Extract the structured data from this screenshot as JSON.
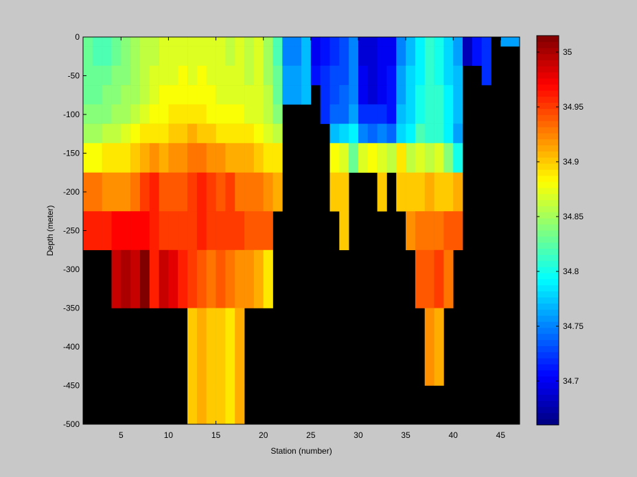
{
  "colors": {
    "figure_background": "#c8c8c8",
    "axes_background": "#000000",
    "no_data": "#000000"
  },
  "chart_data": {
    "type": "heatmap",
    "title": "",
    "xlabel": "Station (number)",
    "ylabel": "Depth (meter)",
    "colormap": "jet",
    "xlim": [
      1,
      47
    ],
    "ylim": [
      -500,
      0
    ],
    "xticks": [
      5,
      10,
      15,
      20,
      25,
      30,
      35,
      40,
      45
    ],
    "yticks": [
      0,
      -50,
      -100,
      -150,
      -200,
      -250,
      -300,
      -350,
      -400,
      -450,
      -500
    ],
    "colorbar": {
      "location": "right",
      "clim": [
        34.66,
        35.015
      ],
      "ticks": [
        34.7,
        34.75,
        34.8,
        34.85,
        34.9,
        34.95,
        35
      ]
    },
    "depth_layers": [
      -5,
      -25,
      -50,
      -75,
      -100,
      -125,
      -150,
      -200,
      -250,
      -300,
      -400,
      -500
    ],
    "stations": [
      {
        "station": 1,
        "values": [
          34.83,
          34.83,
          34.83,
          34.83,
          34.84,
          34.85,
          34.88,
          34.93,
          34.96,
          null,
          null,
          null
        ]
      },
      {
        "station": 2,
        "values": [
          34.82,
          34.82,
          34.83,
          34.83,
          34.84,
          34.85,
          34.88,
          34.93,
          34.96,
          null,
          null,
          null
        ]
      },
      {
        "station": 3,
        "values": [
          34.82,
          34.82,
          34.83,
          34.84,
          34.84,
          34.86,
          34.89,
          34.92,
          34.96,
          null,
          null,
          null
        ]
      },
      {
        "station": 4,
        "values": [
          34.83,
          34.83,
          34.84,
          34.84,
          34.85,
          34.86,
          34.89,
          34.92,
          34.97,
          34.99,
          null,
          null
        ]
      },
      {
        "station": 5,
        "values": [
          34.84,
          34.84,
          34.84,
          34.85,
          34.85,
          34.87,
          34.89,
          34.92,
          34.97,
          35.0,
          null,
          null
        ]
      },
      {
        "station": 6,
        "values": [
          34.85,
          34.85,
          34.85,
          34.85,
          34.86,
          34.88,
          34.9,
          34.93,
          34.97,
          34.99,
          null,
          null
        ]
      },
      {
        "station": 7,
        "values": [
          34.86,
          34.86,
          34.86,
          34.86,
          34.87,
          34.89,
          34.91,
          34.95,
          34.97,
          35.02,
          null,
          null
        ]
      },
      {
        "station": 8,
        "values": [
          34.86,
          34.86,
          34.87,
          34.87,
          34.88,
          34.89,
          34.92,
          34.96,
          34.96,
          34.96,
          null,
          null
        ]
      },
      {
        "station": 9,
        "values": [
          34.87,
          34.87,
          34.87,
          34.88,
          34.88,
          34.89,
          34.91,
          34.94,
          34.95,
          34.99,
          null,
          null
        ]
      },
      {
        "station": 10,
        "values": [
          34.87,
          34.87,
          34.87,
          34.88,
          34.89,
          34.9,
          34.92,
          34.94,
          34.95,
          34.98,
          null,
          null
        ]
      },
      {
        "station": 11,
        "values": [
          34.87,
          34.87,
          34.88,
          34.88,
          34.89,
          34.9,
          34.92,
          34.94,
          34.95,
          34.96,
          null,
          null
        ]
      },
      {
        "station": 12,
        "values": [
          34.87,
          34.87,
          34.87,
          34.88,
          34.89,
          34.91,
          34.93,
          34.95,
          34.95,
          34.95,
          34.9,
          34.9
        ]
      },
      {
        "station": 13,
        "values": [
          34.87,
          34.87,
          34.88,
          34.88,
          34.89,
          34.9,
          34.93,
          34.96,
          34.96,
          34.94,
          34.91,
          34.91
        ]
      },
      {
        "station": 14,
        "values": [
          34.87,
          34.87,
          34.87,
          34.88,
          34.88,
          34.9,
          34.92,
          34.95,
          34.95,
          34.93,
          34.9,
          34.9
        ]
      },
      {
        "station": 15,
        "values": [
          34.87,
          34.87,
          34.87,
          34.87,
          34.88,
          34.89,
          34.92,
          34.94,
          34.95,
          34.94,
          34.9,
          34.9
        ]
      },
      {
        "station": 16,
        "values": [
          34.86,
          34.86,
          34.87,
          34.87,
          34.88,
          34.89,
          34.91,
          34.95,
          34.95,
          34.93,
          34.89,
          34.89
        ]
      },
      {
        "station": 17,
        "values": [
          34.87,
          34.87,
          34.87,
          34.87,
          34.88,
          34.89,
          34.91,
          34.93,
          34.95,
          34.92,
          34.91,
          34.91
        ]
      },
      {
        "station": 18,
        "values": [
          34.86,
          34.86,
          34.86,
          34.87,
          34.87,
          34.89,
          34.91,
          34.93,
          34.94,
          34.92,
          null,
          null
        ]
      },
      {
        "station": 19,
        "values": [
          34.87,
          34.87,
          34.87,
          34.87,
          34.87,
          34.88,
          34.9,
          34.93,
          34.94,
          34.91,
          null,
          null
        ]
      },
      {
        "station": 20,
        "values": [
          34.85,
          34.85,
          34.85,
          34.86,
          34.86,
          34.87,
          34.89,
          34.92,
          34.94,
          34.89,
          null,
          null
        ]
      },
      {
        "station": 21,
        "values": [
          34.82,
          34.82,
          34.83,
          34.83,
          34.84,
          34.86,
          34.89,
          34.91,
          null,
          null,
          null,
          null
        ]
      },
      {
        "station": 22,
        "values": [
          34.75,
          34.75,
          34.76,
          34.76,
          null,
          null,
          null,
          null,
          null,
          null,
          null,
          null
        ]
      },
      {
        "station": 23,
        "values": [
          34.75,
          34.75,
          34.76,
          34.76,
          null,
          null,
          null,
          null,
          null,
          null,
          null,
          null
        ]
      },
      {
        "station": 24,
        "values": [
          34.77,
          34.77,
          34.77,
          34.77,
          null,
          null,
          null,
          null,
          null,
          null,
          null,
          null
        ]
      },
      {
        "station": 25,
        "values": [
          34.7,
          34.7,
          34.71,
          null,
          null,
          null,
          null,
          null,
          null,
          null,
          null,
          null
        ]
      },
      {
        "station": 26,
        "values": [
          34.71,
          34.71,
          34.72,
          34.72,
          34.72,
          null,
          null,
          null,
          null,
          null,
          null,
          null
        ]
      },
      {
        "station": 27,
        "values": [
          34.72,
          34.72,
          34.73,
          34.73,
          34.74,
          34.77,
          34.88,
          34.9,
          null,
          null,
          null,
          null
        ]
      },
      {
        "station": 28,
        "values": [
          34.73,
          34.73,
          34.73,
          34.74,
          34.74,
          34.78,
          34.87,
          34.9,
          34.9,
          null,
          null,
          null
        ]
      },
      {
        "station": 29,
        "values": [
          34.75,
          34.75,
          34.75,
          34.75,
          34.76,
          34.79,
          34.83,
          null,
          null,
          null,
          null,
          null
        ]
      },
      {
        "station": 30,
        "values": [
          34.69,
          34.69,
          34.7,
          34.7,
          34.72,
          34.75,
          34.87,
          null,
          null,
          null,
          null,
          null
        ]
      },
      {
        "station": 31,
        "values": [
          34.69,
          34.69,
          34.69,
          34.69,
          34.72,
          34.74,
          34.88,
          null,
          null,
          null,
          null,
          null
        ]
      },
      {
        "station": 32,
        "values": [
          34.7,
          34.7,
          34.7,
          34.7,
          34.72,
          34.75,
          34.87,
          34.9,
          null,
          null,
          null,
          null
        ]
      },
      {
        "station": 33,
        "values": [
          34.7,
          34.7,
          34.71,
          34.71,
          34.71,
          34.74,
          34.86,
          null,
          null,
          null,
          null,
          null
        ]
      },
      {
        "station": 34,
        "values": [
          34.75,
          34.75,
          34.76,
          34.76,
          34.77,
          34.78,
          34.89,
          34.9,
          null,
          null,
          null,
          null
        ]
      },
      {
        "station": 35,
        "values": [
          34.77,
          34.77,
          34.78,
          34.78,
          34.78,
          34.79,
          34.86,
          34.9,
          34.92,
          null,
          null,
          null
        ]
      },
      {
        "station": 36,
        "values": [
          34.79,
          34.79,
          34.79,
          34.8,
          34.8,
          34.82,
          34.87,
          34.9,
          34.93,
          34.94,
          null,
          null
        ]
      },
      {
        "station": 37,
        "values": [
          34.81,
          34.81,
          34.81,
          34.81,
          34.81,
          34.81,
          34.86,
          34.91,
          34.93,
          34.94,
          34.92,
          null
        ]
      },
      {
        "station": 38,
        "values": [
          34.8,
          34.8,
          34.8,
          34.81,
          34.81,
          34.81,
          34.87,
          34.9,
          34.93,
          34.95,
          34.91,
          null
        ]
      },
      {
        "station": 39,
        "values": [
          34.78,
          34.78,
          34.78,
          34.79,
          34.79,
          34.79,
          34.84,
          34.9,
          34.94,
          34.93,
          null,
          null
        ]
      },
      {
        "station": 40,
        "values": [
          34.76,
          34.76,
          34.77,
          34.77,
          34.77,
          34.76,
          34.8,
          34.91,
          34.94,
          null,
          null,
          null
        ]
      },
      {
        "station": 41,
        "values": [
          34.68,
          34.68,
          null,
          null,
          null,
          null,
          null,
          null,
          null,
          null,
          null,
          null
        ]
      },
      {
        "station": 42,
        "values": [
          34.71,
          34.71,
          null,
          null,
          null,
          null,
          null,
          null,
          null,
          null,
          null,
          null
        ]
      },
      {
        "station": 43,
        "values": [
          34.72,
          34.72,
          34.72,
          null,
          null,
          null,
          null,
          null,
          null,
          null,
          null,
          null
        ]
      },
      {
        "station": 44,
        "values": [
          null,
          null,
          null,
          null,
          null,
          null,
          null,
          null,
          null,
          null,
          null,
          null
        ]
      },
      {
        "station": 45,
        "values": [
          34.76,
          null,
          null,
          null,
          null,
          null,
          null,
          null,
          null,
          null,
          null,
          null
        ]
      },
      {
        "station": 46,
        "values": [
          34.76,
          null,
          null,
          null,
          null,
          null,
          null,
          null,
          null,
          null,
          null,
          null
        ]
      }
    ]
  }
}
